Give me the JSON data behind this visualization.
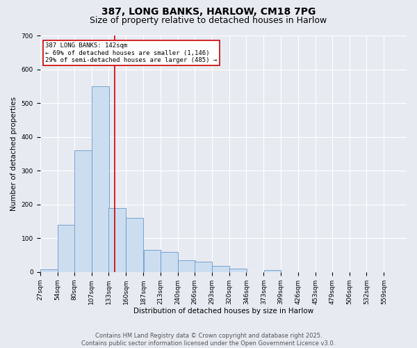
{
  "title": "387, LONG BANKS, HARLOW, CM18 7PG",
  "subtitle": "Size of property relative to detached houses in Harlow",
  "xlabel": "Distribution of detached houses by size in Harlow",
  "ylabel": "Number of detached properties",
  "background_color": "#e8eaf2",
  "bar_color": "#ccddf0",
  "bar_edge_color": "#6699cc",
  "grid_color": "#ffffff",
  "bar_left_edges": [
    27,
    54,
    80,
    107,
    133,
    160,
    187,
    213,
    240,
    266,
    293,
    320,
    346,
    373,
    399,
    426,
    453,
    479,
    506,
    532
  ],
  "bar_heights": [
    8,
    140,
    360,
    550,
    190,
    160,
    65,
    60,
    35,
    30,
    18,
    10,
    0,
    5,
    0,
    0,
    0,
    0,
    0,
    0
  ],
  "bin_width": 27,
  "red_line_x": 142,
  "annotation_text": "387 LONG BANKS: 142sqm\n← 69% of detached houses are smaller (1,146)\n29% of semi-detached houses are larger (485) →",
  "annotation_box_color": "#ffffff",
  "annotation_box_edge_color": "#cc0000",
  "annotation_text_color": "#000000",
  "red_line_color": "#cc0000",
  "ylim": [
    0,
    700
  ],
  "yticks": [
    0,
    100,
    200,
    300,
    400,
    500,
    600,
    700
  ],
  "xtick_labels": [
    "27sqm",
    "54sqm",
    "80sqm",
    "107sqm",
    "133sqm",
    "160sqm",
    "187sqm",
    "213sqm",
    "240sqm",
    "266sqm",
    "293sqm",
    "320sqm",
    "346sqm",
    "373sqm",
    "399sqm",
    "426sqm",
    "453sqm",
    "479sqm",
    "506sqm",
    "532sqm",
    "559sqm"
  ],
  "footer_text": "Contains HM Land Registry data © Crown copyright and database right 2025.\nContains public sector information licensed under the Open Government Licence v3.0.",
  "title_fontsize": 10,
  "subtitle_fontsize": 9,
  "axis_label_fontsize": 7.5,
  "tick_fontsize": 6.5,
  "annotation_fontsize": 6.5,
  "footer_fontsize": 6
}
